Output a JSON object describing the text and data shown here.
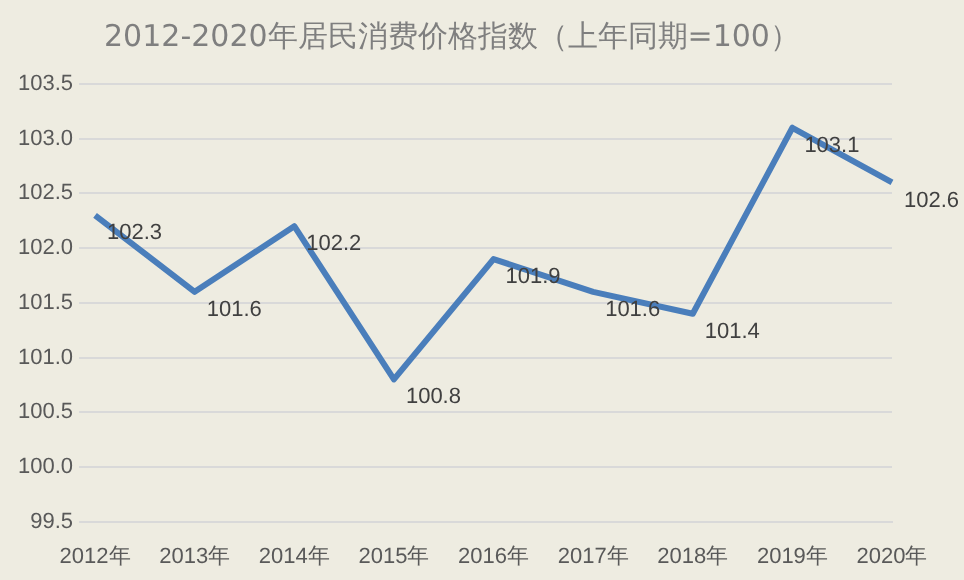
{
  "chart_data": {
    "type": "line",
    "title": "2012-2020年居民消费价格指数（上年同期=100）",
    "categories": [
      "2012年",
      "2013年",
      "2014年",
      "2015年",
      "2016年",
      "2017年",
      "2018年",
      "2019年",
      "2020年"
    ],
    "values": [
      102.3,
      101.6,
      102.2,
      100.8,
      101.9,
      101.6,
      101.4,
      103.1,
      102.6
    ],
    "color": "#4a7ebb",
    "ylim": [
      99.5,
      103.5
    ],
    "yticks": [
      99.5,
      {
        "value": 100,
        "label": "100.0"
      },
      100.5,
      {
        "value": 101,
        "label": "101.0"
      },
      101.5,
      {
        "value": 102,
        "label": "102.0"
      },
      102.5,
      {
        "value": 103,
        "label": "103.0"
      },
      103.5
    ],
    "grid": "y",
    "data_labels": true
  }
}
